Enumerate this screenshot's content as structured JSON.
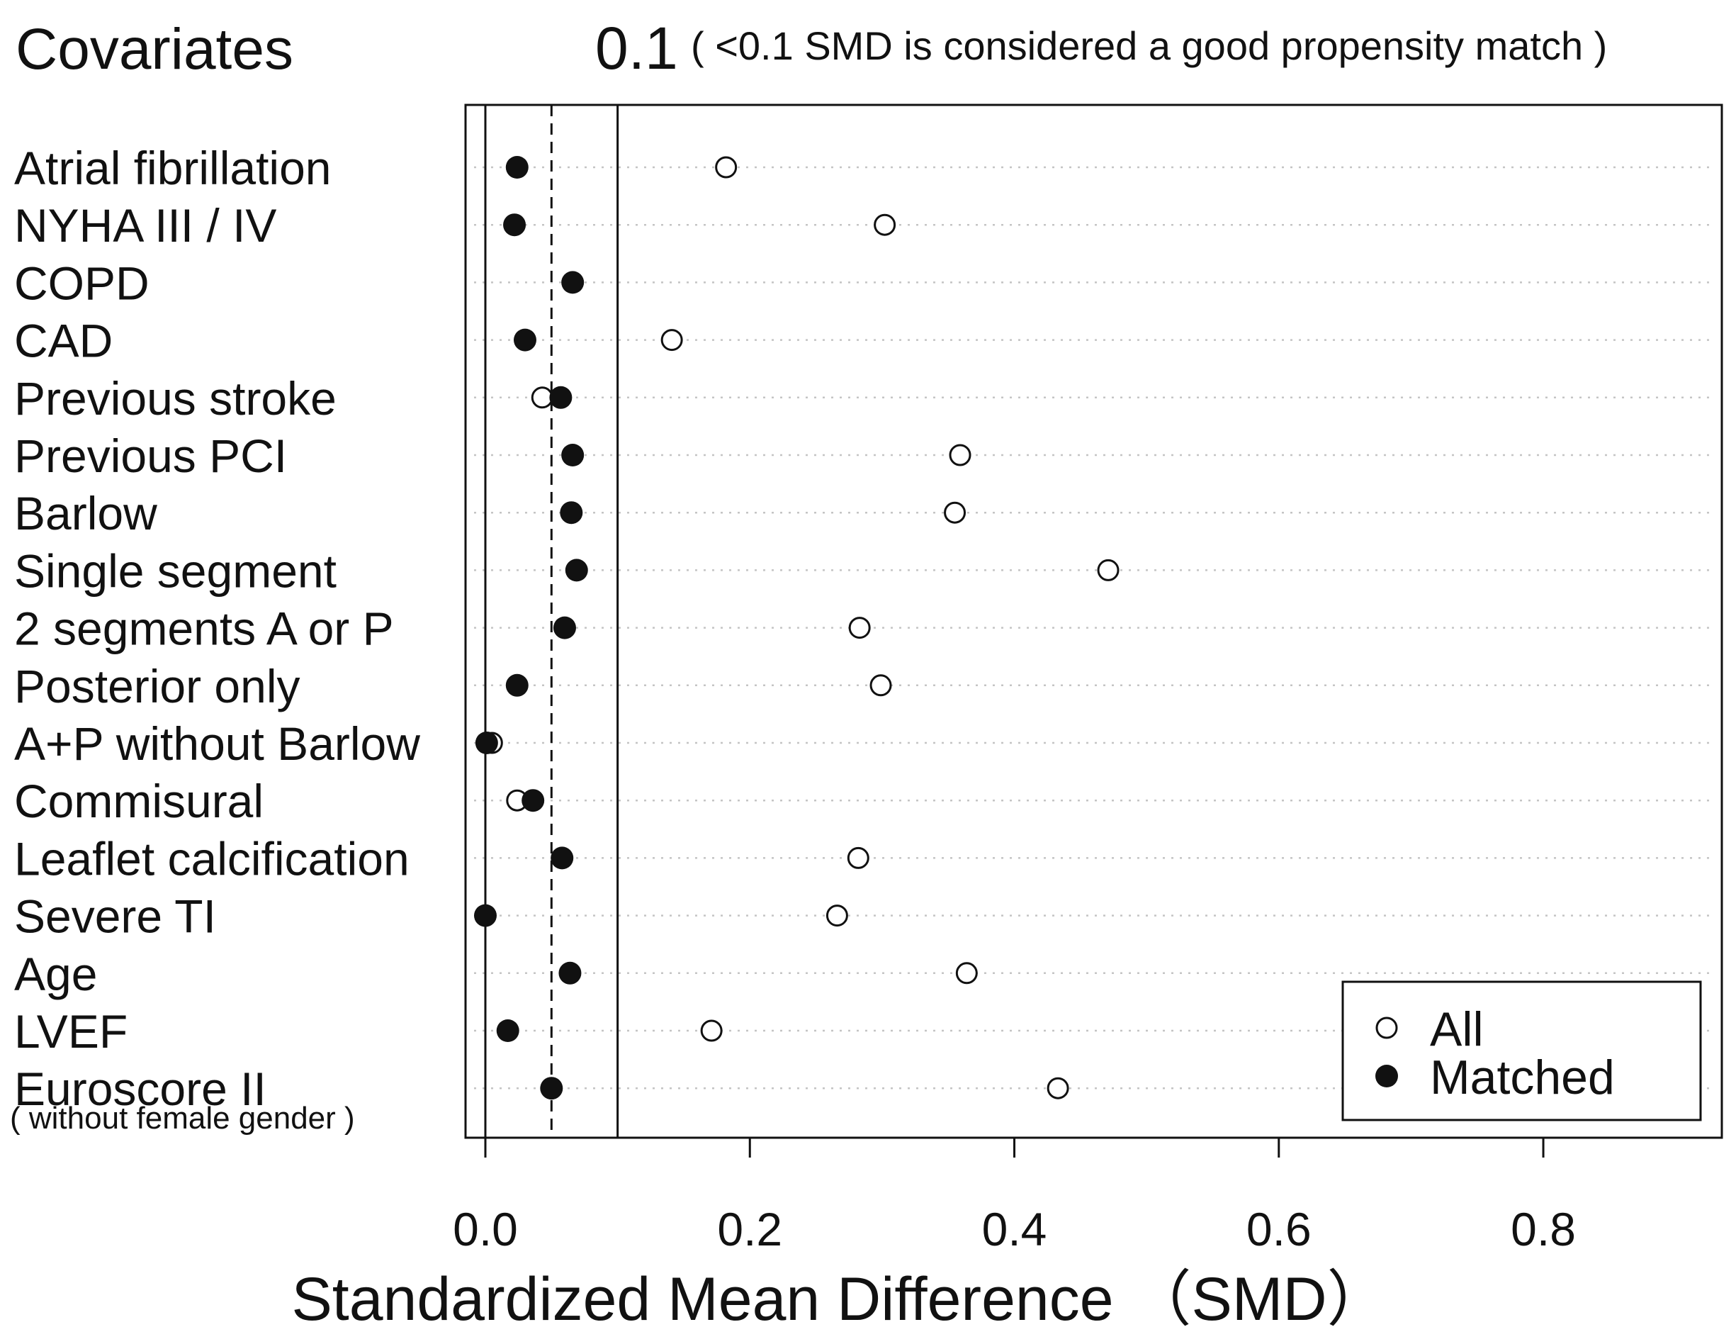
{
  "chart_data": {
    "type": "scatter",
    "title_left": "Covariates",
    "threshold_label": "0.1",
    "threshold_note": "( <0.1 SMD is considered a good propensity match )",
    "xlabel": "Standardized Mean Difference （SMD）",
    "xlim": [
      -0.015,
      0.935
    ],
    "x_ticks": [
      0.0,
      0.2,
      0.4,
      0.6,
      0.8
    ],
    "x_tick_labels": [
      "0.0",
      "0.2",
      "0.4",
      "0.6",
      "0.8"
    ],
    "reference_lines": {
      "solid": [
        0.0,
        0.1
      ],
      "dashed": [
        0.05
      ]
    },
    "grid": "horizontal dotted",
    "categories": [
      "Atrial fibrillation",
      "NYHA III / IV",
      "COPD",
      "CAD",
      "Previous stroke",
      "Previous PCI",
      "Barlow",
      "Single segment",
      "2 segments A or P",
      "Posterior only",
      "A+P without Barlow",
      "Commisural",
      "Leaflet calcification",
      "Severe TI",
      "Age",
      "LVEF",
      "Euroscore II"
    ],
    "category_note": "( without female gender )",
    "series": [
      {
        "name": "All",
        "marker": "open-circle",
        "values": [
          0.182,
          0.302,
          0.066,
          0.141,
          0.043,
          0.359,
          0.355,
          0.471,
          0.283,
          0.299,
          0.005,
          0.024,
          0.282,
          0.266,
          0.364,
          0.171,
          0.433
        ]
      },
      {
        "name": "Matched",
        "marker": "filled-circle",
        "values": [
          0.024,
          0.022,
          0.066,
          0.03,
          0.057,
          0.066,
          0.065,
          0.069,
          0.06,
          0.024,
          0.001,
          0.036,
          0.058,
          0.0,
          0.064,
          0.017,
          0.05
        ]
      }
    ],
    "legend": {
      "position": "bottom-right",
      "entries": [
        "All",
        "Matched"
      ]
    }
  }
}
